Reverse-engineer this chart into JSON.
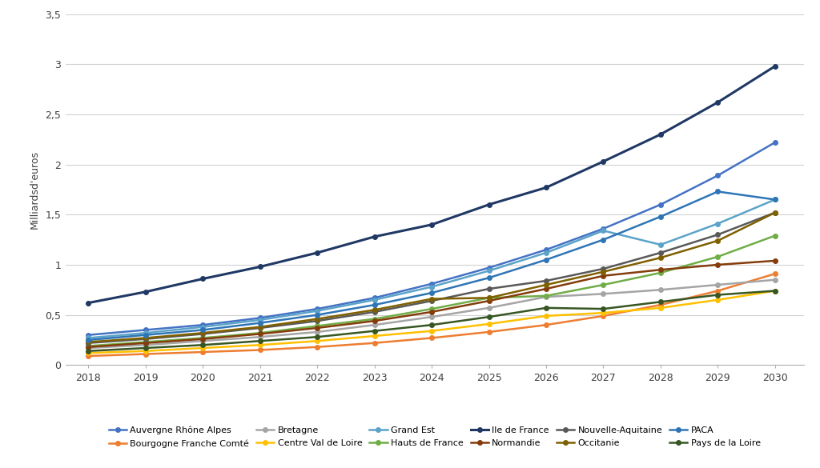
{
  "years": [
    2018,
    2019,
    2020,
    2021,
    2022,
    2023,
    2024,
    2025,
    2026,
    2027,
    2028,
    2029,
    2030
  ],
  "series": {
    "Auvergne Rhône Alpes": {
      "color": "#4472C4",
      "values": [
        0.3,
        0.35,
        0.4,
        0.47,
        0.56,
        0.67,
        0.81,
        0.97,
        1.15,
        1.36,
        1.6,
        1.89,
        2.22
      ],
      "marker": "o",
      "linewidth": 1.8
    },
    "Bourgogne Franche Comté": {
      "color": "#ED7D31",
      "values": [
        0.09,
        0.11,
        0.13,
        0.15,
        0.18,
        0.22,
        0.27,
        0.33,
        0.4,
        0.49,
        0.6,
        0.74,
        0.91
      ],
      "marker": "o",
      "linewidth": 1.8
    },
    "Bretagne": {
      "color": "#A5A5A5",
      "values": [
        0.17,
        0.2,
        0.24,
        0.28,
        0.33,
        0.4,
        0.48,
        0.57,
        0.68,
        0.71,
        0.75,
        0.8,
        0.85
      ],
      "marker": "o",
      "linewidth": 1.8
    },
    "Centre Val de Loire": {
      "color": "#FFC000",
      "values": [
        0.12,
        0.14,
        0.17,
        0.2,
        0.24,
        0.29,
        0.34,
        0.41,
        0.49,
        0.52,
        0.57,
        0.65,
        0.74
      ],
      "marker": "o",
      "linewidth": 1.8
    },
    "Grand Est": {
      "color": "#5BA3C9",
      "values": [
        0.27,
        0.32,
        0.38,
        0.45,
        0.54,
        0.65,
        0.78,
        0.94,
        1.12,
        1.34,
        1.2,
        1.41,
        1.65
      ],
      "marker": "o",
      "linewidth": 1.8
    },
    "Hauts de France": {
      "color": "#70AD47",
      "values": [
        0.19,
        0.23,
        0.27,
        0.32,
        0.39,
        0.46,
        0.56,
        0.67,
        0.69,
        0.8,
        0.92,
        1.08,
        1.29
      ],
      "marker": "o",
      "linewidth": 1.8
    },
    "Ile de France": {
      "color": "#1F3864",
      "values": [
        0.62,
        0.73,
        0.86,
        0.98,
        1.12,
        1.28,
        1.4,
        1.6,
        1.77,
        2.03,
        2.3,
        2.62,
        2.98
      ],
      "marker": "o",
      "linewidth": 2.2
    },
    "Normandie": {
      "color": "#843C0C",
      "values": [
        0.18,
        0.22,
        0.26,
        0.31,
        0.37,
        0.44,
        0.53,
        0.64,
        0.76,
        0.89,
        0.95,
        1.0,
        1.04
      ],
      "marker": "o",
      "linewidth": 1.8
    },
    "Nouvelle-Aquitaine": {
      "color": "#595959",
      "values": [
        0.22,
        0.26,
        0.31,
        0.37,
        0.44,
        0.53,
        0.64,
        0.76,
        0.84,
        0.96,
        1.12,
        1.3,
        1.52
      ],
      "marker": "o",
      "linewidth": 1.8
    },
    "Occitanie": {
      "color": "#7F6000",
      "values": [
        0.23,
        0.27,
        0.32,
        0.38,
        0.46,
        0.55,
        0.66,
        0.67,
        0.8,
        0.93,
        1.07,
        1.24,
        1.52
      ],
      "marker": "o",
      "linewidth": 1.8
    },
    "PACA": {
      "color": "#2E75B6",
      "values": [
        0.25,
        0.3,
        0.35,
        0.42,
        0.5,
        0.6,
        0.72,
        0.87,
        1.05,
        1.25,
        1.48,
        1.73,
        1.65
      ],
      "marker": "o",
      "linewidth": 1.8
    },
    "Pays de la Loire": {
      "color": "#375623",
      "values": [
        0.14,
        0.17,
        0.2,
        0.24,
        0.28,
        0.34,
        0.4,
        0.48,
        0.57,
        0.56,
        0.63,
        0.7,
        0.74
      ],
      "marker": "o",
      "linewidth": 1.8
    }
  },
  "ylabel": "Milliardsd'euros",
  "ylim": [
    0,
    3.5
  ],
  "yticks": [
    0,
    0.5,
    1.0,
    1.5,
    2.0,
    2.5,
    3.0,
    3.5
  ],
  "ytick_labels": [
    "0",
    "0,5",
    "1",
    "1,5",
    "2",
    "2,5",
    "3",
    "3,5"
  ],
  "background_color": "#ffffff",
  "grid_color": "#d0d0d0",
  "legend_fontsize": 8,
  "axis_fontsize": 9
}
